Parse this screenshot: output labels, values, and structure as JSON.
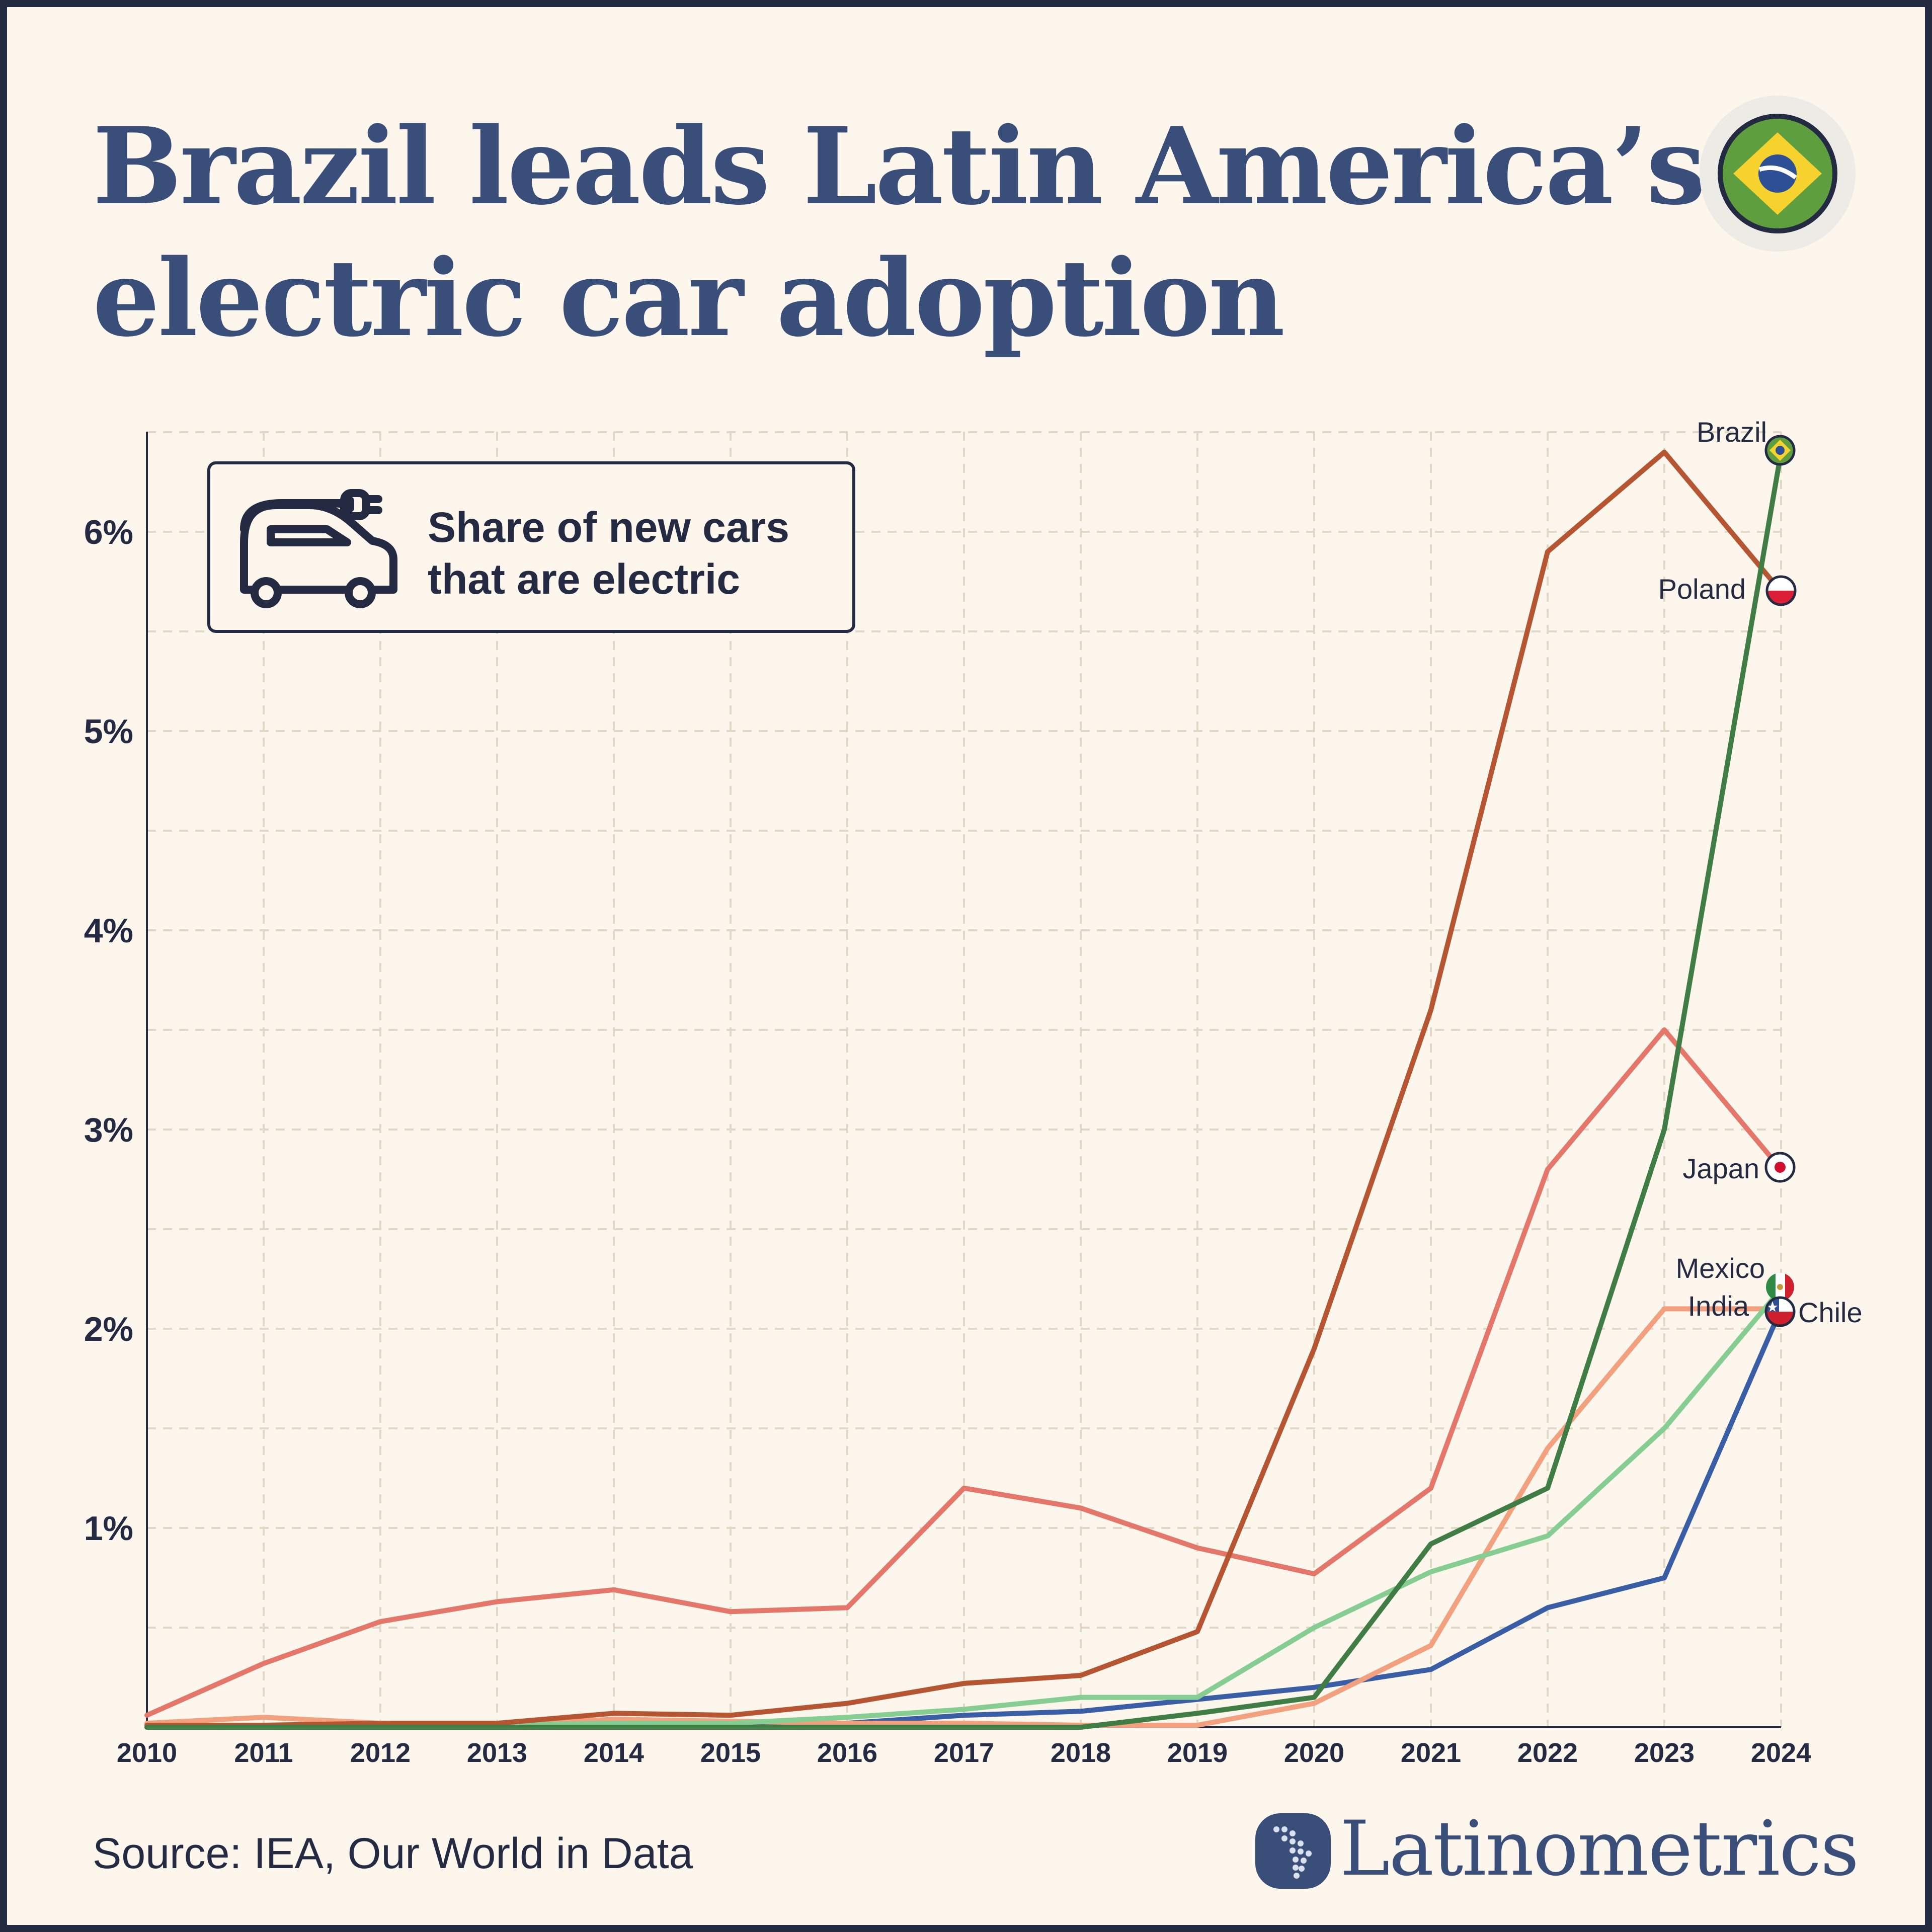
{
  "header": {
    "title_line1": "Brazil leads Latin America’s",
    "title_line2": "electric car adoption"
  },
  "legend": {
    "line1": "Share of new cars",
    "line2": "that are electric",
    "icon": "electric-car-plug-icon"
  },
  "footer": {
    "source": "Source: IEA, Our World in Data",
    "brand": "Latinometrics"
  },
  "chart_data": {
    "type": "line",
    "title": "Share of new cars that are electric",
    "xlabel": "",
    "ylabel": "",
    "x": [
      2010,
      2011,
      2012,
      2013,
      2014,
      2015,
      2016,
      2017,
      2018,
      2019,
      2020,
      2021,
      2022,
      2023,
      2024
    ],
    "ylim": [
      0,
      6.5
    ],
    "yticks": [
      1,
      2,
      3,
      4,
      5,
      6
    ],
    "ytick_labels": [
      "1%",
      "2%",
      "3%",
      "4%",
      "5%",
      "6%"
    ],
    "grid": true,
    "legend_position": "top-left",
    "series": [
      {
        "name": "Brazil",
        "color": "#3f7d45",
        "values": [
          0,
          0,
          0,
          0,
          0,
          0,
          0,
          0,
          0,
          0.07,
          0.15,
          0.92,
          1.2,
          3.0,
          6.4
        ]
      },
      {
        "name": "Poland",
        "color": "#b65532",
        "values": [
          0.01,
          0.01,
          0.02,
          0.02,
          0.07,
          0.06,
          0.12,
          0.22,
          0.26,
          0.48,
          1.9,
          3.6,
          5.9,
          6.4,
          5.7
        ]
      },
      {
        "name": "Japan",
        "color": "#e5766a",
        "values": [
          0.06,
          0.32,
          0.53,
          0.63,
          0.69,
          0.58,
          0.6,
          1.2,
          1.1,
          0.9,
          0.77,
          1.2,
          2.8,
          3.5,
          2.8
        ]
      },
      {
        "name": "Mexico",
        "color": "#86cd92",
        "values": [
          0,
          0,
          0,
          0.01,
          0.02,
          0.02,
          0.05,
          0.09,
          0.15,
          0.15,
          0.5,
          0.78,
          0.96,
          1.5,
          2.2
        ]
      },
      {
        "name": "India",
        "color": "#f2a07e",
        "values": [
          0.02,
          0.05,
          0.02,
          0.01,
          0.04,
          0.03,
          0.02,
          0.02,
          0.01,
          0.01,
          0.12,
          0.41,
          1.4,
          2.1,
          2.1
        ]
      },
      {
        "name": "Chile",
        "color": "#3a5ea5",
        "values": [
          0,
          0,
          0,
          0,
          0,
          0,
          0.02,
          0.06,
          0.08,
          0.14,
          0.2,
          0.29,
          0.6,
          0.75,
          2.1
        ]
      }
    ],
    "end_labels": [
      "Brazil",
      "Poland",
      "Japan",
      "Mexico",
      "India",
      "Chile"
    ]
  }
}
